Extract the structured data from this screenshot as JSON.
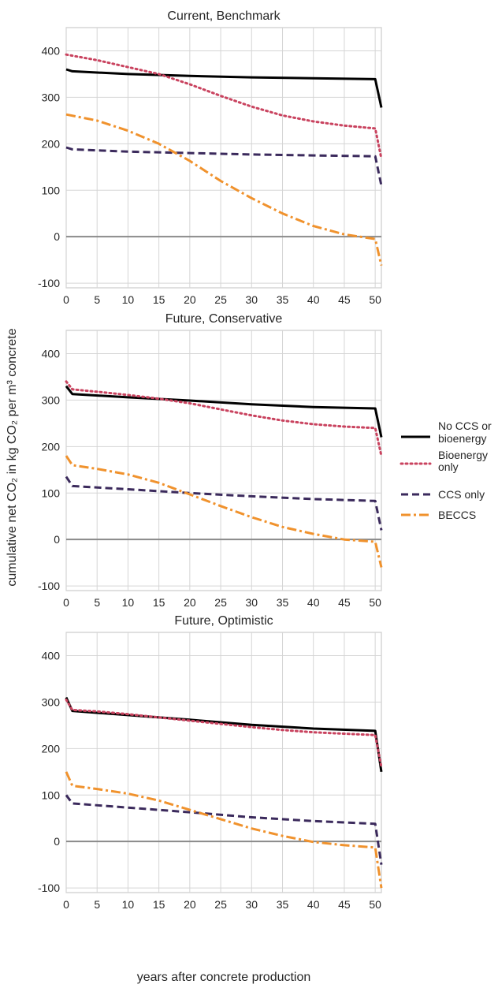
{
  "figure": {
    "ylabel": "cumulative net CO₂ in kg CO₂ per m³ concrete",
    "xlabel": "years after concrete production"
  },
  "legend": [
    {
      "lines": [
        "No CCS or",
        "bioenergy"
      ],
      "series": "no_ccs",
      "color": "#000000",
      "style": "solid"
    },
    {
      "lines": [
        "Bioenergy",
        "only"
      ],
      "series": "bioenergy",
      "color": "#c9435f",
      "style": "dotted"
    },
    {
      "lines": [
        "CCS only"
      ],
      "series": "ccs",
      "color": "#3b2a5c",
      "style": "dashed"
    },
    {
      "lines": [
        "BECCS"
      ],
      "series": "beccs",
      "color": "#f0922d",
      "style": "dashdot"
    }
  ],
  "chart_data": [
    {
      "type": "line",
      "title": "Current, Benchmark",
      "xlim": [
        0,
        51
      ],
      "ylim": [
        -110,
        450
      ],
      "xticks": [
        0,
        5,
        10,
        15,
        20,
        25,
        30,
        35,
        40,
        45,
        50
      ],
      "xticklabels": [
        "0",
        "5",
        "10",
        "15",
        "20",
        "25",
        "30",
        "35",
        "40",
        "45",
        "50"
      ],
      "yticks": [
        -100,
        0,
        100,
        200,
        300,
        400
      ],
      "yticklabels": [
        "-100",
        "0",
        "100",
        "200",
        "300",
        "400"
      ],
      "reference_line": 0,
      "series": [
        {
          "key": "no_ccs",
          "x": [
            0,
            1,
            10,
            20,
            30,
            40,
            50,
            51
          ],
          "y": [
            360,
            356,
            350,
            346,
            343,
            341,
            339,
            278
          ]
        },
        {
          "key": "bioenergy",
          "x": [
            0,
            5,
            10,
            15,
            20,
            25,
            30,
            35,
            40,
            45,
            50,
            51
          ],
          "y": [
            392,
            380,
            365,
            350,
            328,
            303,
            280,
            261,
            248,
            239,
            233,
            168
          ]
        },
        {
          "key": "ccs",
          "x": [
            0,
            1,
            10,
            20,
            30,
            40,
            50,
            51
          ],
          "y": [
            192,
            188,
            183,
            180,
            177,
            175,
            173,
            110
          ]
        },
        {
          "key": "beccs",
          "x": [
            0,
            5,
            10,
            15,
            20,
            25,
            30,
            35,
            40,
            45,
            50,
            51
          ],
          "y": [
            263,
            250,
            228,
            200,
            163,
            120,
            83,
            50,
            23,
            5,
            -5,
            -62
          ]
        }
      ]
    },
    {
      "type": "line",
      "title": "Future, Conservative",
      "xlim": [
        0,
        51
      ],
      "ylim": [
        -110,
        450
      ],
      "xticks": [
        0,
        5,
        10,
        15,
        20,
        25,
        30,
        35,
        40,
        45,
        50
      ],
      "xticklabels": [
        "0",
        "5",
        "10",
        "15",
        "20",
        "25",
        "30",
        "35",
        "40",
        "45",
        "50"
      ],
      "yticks": [
        -100,
        0,
        100,
        200,
        300,
        400
      ],
      "yticklabels": [
        "-100",
        "0",
        "100",
        "200",
        "300",
        "400"
      ],
      "reference_line": 0,
      "series": [
        {
          "key": "no_ccs",
          "x": [
            0,
            1,
            10,
            20,
            30,
            40,
            50,
            51
          ],
          "y": [
            330,
            313,
            306,
            299,
            291,
            285,
            282,
            220
          ]
        },
        {
          "key": "bioenergy",
          "x": [
            0,
            1,
            5,
            10,
            15,
            20,
            25,
            30,
            35,
            40,
            45,
            50,
            51
          ],
          "y": [
            340,
            323,
            318,
            311,
            303,
            293,
            280,
            267,
            256,
            248,
            243,
            240,
            180
          ]
        },
        {
          "key": "ccs",
          "x": [
            0,
            1,
            10,
            20,
            30,
            40,
            50,
            51
          ],
          "y": [
            135,
            115,
            108,
            100,
            93,
            87,
            83,
            20
          ]
        },
        {
          "key": "beccs",
          "x": [
            0,
            1,
            5,
            10,
            15,
            20,
            25,
            30,
            35,
            40,
            45,
            50,
            51
          ],
          "y": [
            180,
            160,
            152,
            140,
            122,
            97,
            72,
            48,
            27,
            12,
            0,
            -5,
            -60
          ]
        }
      ]
    },
    {
      "type": "line",
      "title": "Future, Optimistic",
      "xlim": [
        0,
        51
      ],
      "ylim": [
        -110,
        450
      ],
      "xticks": [
        0,
        5,
        10,
        15,
        20,
        25,
        30,
        35,
        40,
        45,
        50
      ],
      "xticklabels": [
        "0",
        "5",
        "10",
        "15",
        "20",
        "25",
        "30",
        "35",
        "40",
        "45",
        "50"
      ],
      "yticks": [
        -100,
        0,
        100,
        200,
        300,
        400
      ],
      "yticklabels": [
        "-100",
        "0",
        "100",
        "200",
        "300",
        "400"
      ],
      "reference_line": 0,
      "series": [
        {
          "key": "no_ccs",
          "x": [
            0,
            1,
            10,
            20,
            30,
            40,
            50,
            51
          ],
          "y": [
            310,
            281,
            272,
            262,
            251,
            243,
            238,
            150
          ]
        },
        {
          "key": "bioenergy",
          "x": [
            0,
            1,
            5,
            10,
            15,
            20,
            25,
            30,
            35,
            40,
            45,
            50,
            51
          ],
          "y": [
            305,
            283,
            280,
            274,
            267,
            260,
            253,
            246,
            240,
            235,
            232,
            229,
            160
          ]
        },
        {
          "key": "ccs",
          "x": [
            0,
            1,
            10,
            20,
            30,
            40,
            50,
            51
          ],
          "y": [
            100,
            82,
            73,
            63,
            52,
            44,
            38,
            -50
          ]
        },
        {
          "key": "beccs",
          "x": [
            0,
            1,
            5,
            10,
            15,
            20,
            25,
            30,
            35,
            40,
            45,
            50,
            51
          ],
          "y": [
            150,
            120,
            113,
            103,
            88,
            68,
            48,
            28,
            12,
            -1,
            -8,
            -13,
            -100
          ]
        }
      ]
    }
  ]
}
